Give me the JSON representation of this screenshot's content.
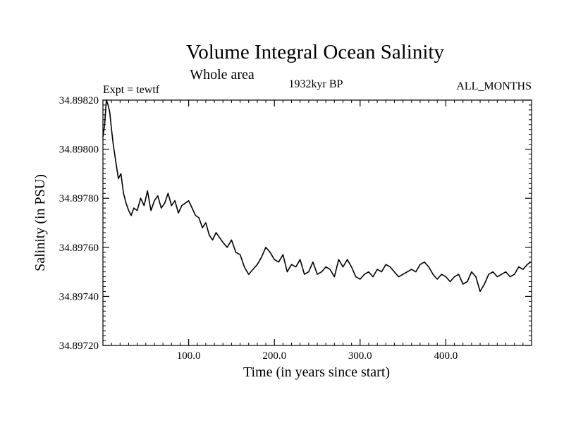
{
  "chart_data": {
    "type": "line",
    "title": "Volume Integral Ocean Salinity",
    "subtitle": "Whole area",
    "experiment_label": "Expt = tewtf",
    "period_label": "1932kyr BP",
    "months_label": "ALL_MONTHS",
    "xlabel": "Time (in years since start)",
    "ylabel": "Salinity (in PSU)",
    "xlim": [
      0,
      500
    ],
    "ylim": [
      34.8972,
      34.8982
    ],
    "x_ticks": [
      100,
      200,
      300,
      400
    ],
    "x_tick_labels": [
      "100.0",
      "200.0",
      "300.0",
      "400.0"
    ],
    "y_ticks": [
      34.8972,
      34.8974,
      34.8976,
      34.8978,
      34.898,
      34.8982
    ],
    "y_tick_labels": [
      "34.89720",
      "34.89740",
      "34.89760",
      "34.89780",
      "34.89800",
      "34.89820"
    ],
    "grid": false,
    "series": [
      {
        "name": "Salinity",
        "color": "#000000",
        "x": [
          0,
          2,
          4,
          6,
          8,
          10,
          12,
          15,
          18,
          21,
          24,
          27,
          30,
          33,
          36,
          40,
          44,
          48,
          52,
          56,
          60,
          64,
          68,
          72,
          76,
          80,
          84,
          88,
          92,
          96,
          100,
          104,
          108,
          112,
          116,
          120,
          124,
          128,
          132,
          136,
          140,
          145,
          150,
          155,
          160,
          165,
          170,
          175,
          180,
          185,
          190,
          195,
          200,
          205,
          210,
          215,
          220,
          225,
          230,
          235,
          240,
          245,
          250,
          255,
          260,
          265,
          270,
          275,
          280,
          285,
          290,
          295,
          300,
          305,
          310,
          315,
          320,
          325,
          330,
          335,
          340,
          345,
          350,
          355,
          360,
          365,
          370,
          375,
          380,
          385,
          390,
          395,
          400,
          405,
          410,
          415,
          420,
          425,
          430,
          435,
          440,
          445,
          450,
          455,
          460,
          465,
          470,
          475,
          480,
          485,
          490,
          495,
          499
        ],
        "values": [
          34.89805,
          34.8981,
          34.8982,
          34.89818,
          34.89815,
          34.89808,
          34.89802,
          34.89795,
          34.89788,
          34.8979,
          34.89782,
          34.89778,
          34.89775,
          34.89773,
          34.89776,
          34.89775,
          34.8978,
          34.89777,
          34.89783,
          34.89775,
          34.89779,
          34.89781,
          34.89776,
          34.89778,
          34.89782,
          34.89777,
          34.89779,
          34.89774,
          34.89777,
          34.89778,
          34.89779,
          34.89776,
          34.89773,
          34.89772,
          34.89768,
          34.8977,
          34.89765,
          34.89763,
          34.89766,
          34.89764,
          34.89762,
          34.8976,
          34.89763,
          34.89758,
          34.89757,
          34.89752,
          34.89749,
          34.89751,
          34.89753,
          34.89756,
          34.8976,
          34.89758,
          34.89755,
          34.89754,
          34.89757,
          34.8975,
          34.89753,
          34.89752,
          34.89755,
          34.89749,
          34.8975,
          34.89754,
          34.89749,
          34.8975,
          34.89752,
          34.89751,
          34.89748,
          34.89755,
          34.89752,
          34.89755,
          34.89752,
          34.89748,
          34.89747,
          34.89749,
          34.8975,
          34.89748,
          34.89751,
          34.8975,
          34.89753,
          34.89752,
          34.8975,
          34.89748,
          34.89749,
          34.8975,
          34.89751,
          34.8975,
          34.89753,
          34.89754,
          34.89752,
          34.89749,
          34.89747,
          34.89749,
          34.89748,
          34.89746,
          34.89748,
          34.89749,
          34.89745,
          34.89746,
          34.8975,
          34.89748,
          34.89742,
          34.89745,
          34.89749,
          34.8975,
          34.89748,
          34.89749,
          34.8975,
          34.89748,
          34.89749,
          34.89752,
          34.89751,
          34.89753,
          34.89754
        ]
      }
    ]
  }
}
